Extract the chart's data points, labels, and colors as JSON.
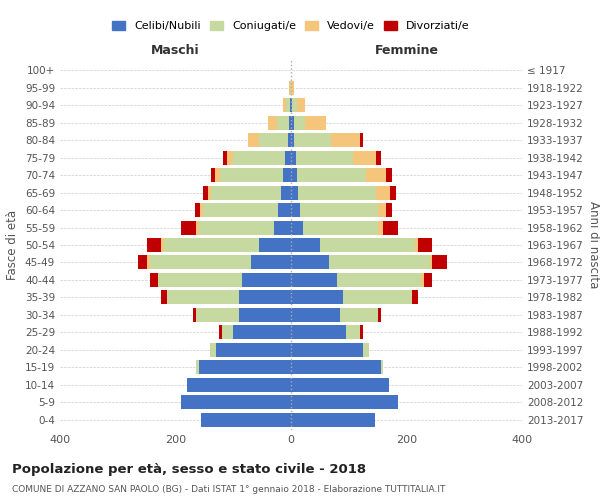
{
  "age_groups": [
    "0-4",
    "5-9",
    "10-14",
    "15-19",
    "20-24",
    "25-29",
    "30-34",
    "35-39",
    "40-44",
    "45-49",
    "50-54",
    "55-59",
    "60-64",
    "65-69",
    "70-74",
    "75-79",
    "80-84",
    "85-89",
    "90-94",
    "95-99",
    "100+"
  ],
  "birth_years": [
    "2013-2017",
    "2008-2012",
    "2003-2007",
    "1998-2002",
    "1993-1997",
    "1988-1992",
    "1983-1987",
    "1978-1982",
    "1973-1977",
    "1968-1972",
    "1963-1967",
    "1958-1962",
    "1953-1957",
    "1948-1952",
    "1943-1947",
    "1938-1942",
    "1933-1937",
    "1928-1932",
    "1923-1927",
    "1918-1922",
    "≤ 1917"
  ],
  "colors": {
    "celibi": "#4472C4",
    "coniugati": "#c5d9a0",
    "vedovi": "#f5c57c",
    "divorziati": "#c00000"
  },
  "maschi": {
    "celibi": [
      155,
      190,
      180,
      160,
      130,
      100,
      90,
      90,
      85,
      70,
      55,
      30,
      22,
      18,
      13,
      10,
      5,
      4,
      2,
      0,
      0
    ],
    "coniugati": [
      0,
      0,
      0,
      5,
      10,
      20,
      75,
      125,
      145,
      175,
      165,
      130,
      130,
      120,
      110,
      90,
      50,
      20,
      6,
      0,
      0
    ],
    "vedovi": [
      0,
      0,
      0,
      0,
      0,
      0,
      0,
      0,
      0,
      5,
      5,
      5,
      5,
      5,
      8,
      10,
      20,
      15,
      5,
      3,
      0
    ],
    "divorziati": [
      0,
      0,
      0,
      0,
      0,
      5,
      5,
      10,
      15,
      15,
      25,
      25,
      10,
      10,
      8,
      7,
      0,
      0,
      0,
      0,
      0
    ]
  },
  "femmine": {
    "celibi": [
      145,
      185,
      170,
      155,
      125,
      95,
      85,
      90,
      80,
      65,
      50,
      20,
      15,
      12,
      10,
      8,
      5,
      5,
      2,
      0,
      0
    ],
    "coniugati": [
      0,
      0,
      0,
      5,
      10,
      25,
      65,
      120,
      145,
      175,
      165,
      130,
      135,
      135,
      120,
      100,
      65,
      20,
      8,
      2,
      0
    ],
    "vedovi": [
      0,
      0,
      0,
      0,
      0,
      0,
      0,
      0,
      5,
      5,
      5,
      10,
      15,
      25,
      35,
      40,
      50,
      35,
      15,
      3,
      0
    ],
    "divorziati": [
      0,
      0,
      0,
      0,
      0,
      5,
      5,
      10,
      15,
      25,
      25,
      25,
      10,
      10,
      10,
      8,
      5,
      0,
      0,
      0,
      0
    ]
  },
  "xlim": 400,
  "title": "Popolazione per età, sesso e stato civile - 2018",
  "subtitle": "COMUNE DI AZZANO SAN PAOLO (BG) - Dati ISTAT 1° gennaio 2018 - Elaborazione TUTTITALIA.IT",
  "ylabel_left": "Fasce di età",
  "ylabel_right": "Anni di nascita",
  "xlabel_left": "Maschi",
  "xlabel_right": "Femmine",
  "bg_color": "#ffffff",
  "grid_color": "#cccccc",
  "bar_height": 0.8
}
